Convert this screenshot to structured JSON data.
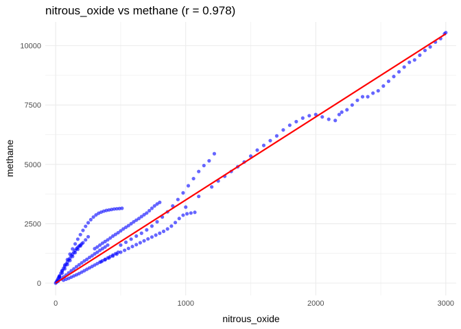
{
  "chart_data": {
    "type": "scatter",
    "title": "nitrous_oxide vs methane (r = 0.978)",
    "xlabel": "nitrous_oxide",
    "ylabel": "methane",
    "xlim": [
      -80,
      3080
    ],
    "ylim": [
      -520,
      11000
    ],
    "x_ticks": [
      0,
      1000,
      2000,
      3000
    ],
    "x_tick_labels": [
      "0",
      "1000",
      "2000",
      "3000"
    ],
    "y_ticks": [
      0,
      2500,
      5000,
      7500,
      10000
    ],
    "y_tick_labels": [
      "0",
      "2500",
      "5000",
      "7500",
      "10000"
    ],
    "grid": true,
    "colors": {
      "points": "#0000ff",
      "fit_line": "#ff0000",
      "grid": "#ebebeb"
    },
    "point_opacity": 0.6,
    "series": [
      {
        "name": "",
        "x": [
          0,
          5,
          10,
          15,
          20,
          25,
          30,
          40,
          50,
          60,
          70,
          80,
          90,
          100,
          110,
          120,
          130,
          140,
          150,
          160,
          170,
          180,
          190,
          200,
          30,
          50,
          70,
          90,
          110,
          130,
          150,
          170,
          190,
          210,
          230,
          250,
          20,
          40,
          60,
          80,
          100,
          120,
          140,
          160,
          180,
          200,
          220,
          240,
          260,
          280,
          300,
          320,
          340,
          360,
          380,
          400,
          10,
          30,
          50,
          70,
          90,
          110,
          130,
          150,
          170,
          190,
          210,
          230,
          250,
          270,
          290,
          310,
          330,
          350,
          370,
          390,
          410,
          430,
          450,
          470,
          490,
          510,
          60,
          80,
          100,
          120,
          140,
          160,
          180,
          200,
          220,
          240,
          260,
          280,
          300,
          320,
          340,
          360,
          380,
          400,
          420,
          440,
          460,
          480,
          300,
          320,
          340,
          360,
          380,
          400,
          420,
          440,
          460,
          480,
          500,
          520,
          540,
          560,
          580,
          600,
          620,
          640,
          660,
          680,
          700,
          720,
          740,
          760,
          780,
          800,
          350,
          380,
          410,
          440,
          470,
          500,
          530,
          560,
          590,
          620,
          650,
          680,
          710,
          740,
          770,
          800,
          830,
          860,
          890,
          920,
          950,
          980,
          1010,
          1040,
          1070,
          500,
          540,
          580,
          620,
          660,
          700,
          740,
          780,
          820,
          860,
          900,
          940,
          980,
          1020,
          1060,
          1100,
          1140,
          1180,
          1220,
          1000,
          1100,
          1200,
          1250,
          1300,
          1350,
          1400,
          1450,
          1500,
          1550,
          1600,
          1650,
          1700,
          1750,
          1800,
          1850,
          1900,
          1950,
          2000,
          2050,
          2100,
          2150,
          2180,
          2200,
          2240,
          2280,
          2320,
          2360,
          2400,
          2440,
          2480,
          2520,
          2560,
          2600,
          2640,
          2680,
          2720,
          2760,
          2800,
          2840,
          2880,
          2920,
          2960,
          2990,
          3000
        ],
        "y": [
          0,
          40,
          90,
          140,
          200,
          260,
          310,
          420,
          520,
          620,
          700,
          800,
          880,
          980,
          1050,
          1150,
          1220,
          1300,
          1380,
          1450,
          1500,
          1560,
          1600,
          1650,
          250,
          420,
          600,
          780,
          950,
          1120,
          1280,
          1420,
          1560,
          1700,
          1820,
          1950,
          80,
          170,
          260,
          340,
          430,
          520,
          600,
          690,
          770,
          850,
          930,
          1000,
          1080,
          1150,
          1230,
          1300,
          1380,
          1450,
          1520,
          1600,
          60,
          280,
          520,
          760,
          990,
          1220,
          1440,
          1650,
          1850,
          2040,
          2220,
          2390,
          2540,
          2670,
          2780,
          2870,
          2940,
          2990,
          3030,
          3060,
          3080,
          3100,
          3120,
          3130,
          3140,
          3150,
          120,
          160,
          200,
          250,
          300,
          350,
          400,
          460,
          520,
          580,
          640,
          700,
          760,
          820,
          880,
          940,
          1000,
          1060,
          1120,
          1180,
          1240,
          1300,
          1450,
          1520,
          1600,
          1680,
          1750,
          1820,
          1900,
          1980,
          2050,
          2120,
          2200,
          2280,
          2350,
          2420,
          2500,
          2580,
          2650,
          2720,
          2800,
          2880,
          2950,
          3050,
          3150,
          3250,
          3330,
          3400,
          900,
          980,
          1060,
          1140,
          1220,
          1300,
          1380,
          1460,
          1540,
          1620,
          1700,
          1780,
          1860,
          1940,
          2020,
          2100,
          2180,
          2280,
          2400,
          2550,
          2720,
          2860,
          2920,
          2950,
          2980,
          1600,
          1720,
          1850,
          1980,
          2100,
          2240,
          2400,
          2580,
          2780,
          3000,
          3250,
          3520,
          3800,
          4100,
          4400,
          4700,
          4950,
          5150,
          5450,
          3200,
          3650,
          4050,
          4300,
          4500,
          4700,
          4900,
          5100,
          5350,
          5600,
          5800,
          6000,
          6200,
          6450,
          6650,
          6800,
          6950,
          7050,
          7100,
          7000,
          6900,
          6850,
          7100,
          7200,
          7300,
          7500,
          7700,
          7850,
          7850,
          8000,
          8100,
          8300,
          8500,
          8700,
          8900,
          9100,
          9300,
          9400,
          9600,
          9800,
          9950,
          10150,
          10300,
          10500,
          10550
        ]
      }
    ],
    "fit_line": {
      "x": [
        0,
        3000
      ],
      "y": [
        0,
        10500
      ]
    }
  }
}
